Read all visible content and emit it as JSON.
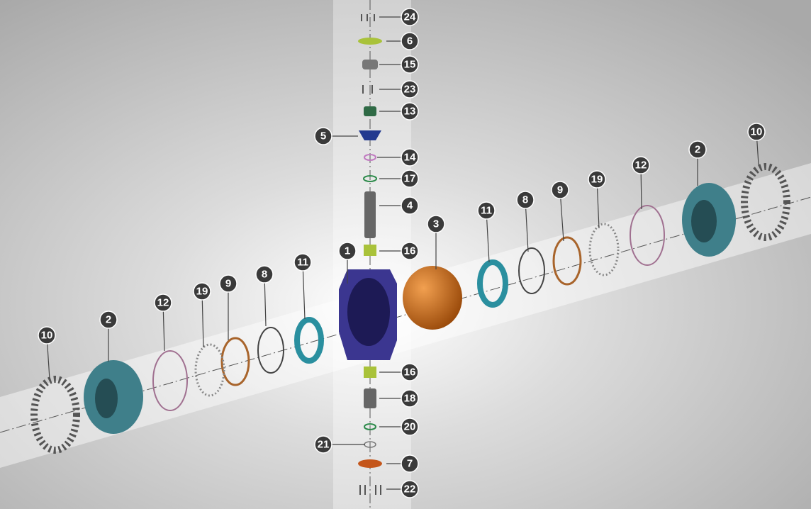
{
  "callouts": [
    "24",
    "6",
    "15",
    "23",
    "13",
    "5",
    "14",
    "17",
    "4",
    "16",
    "1",
    "3",
    "16",
    "18",
    "20",
    "21",
    "7",
    "22",
    "11",
    "8",
    "9",
    "19",
    "12",
    "2",
    "10",
    "11",
    "8",
    "9",
    "19",
    "12",
    "2",
    "10"
  ]
}
